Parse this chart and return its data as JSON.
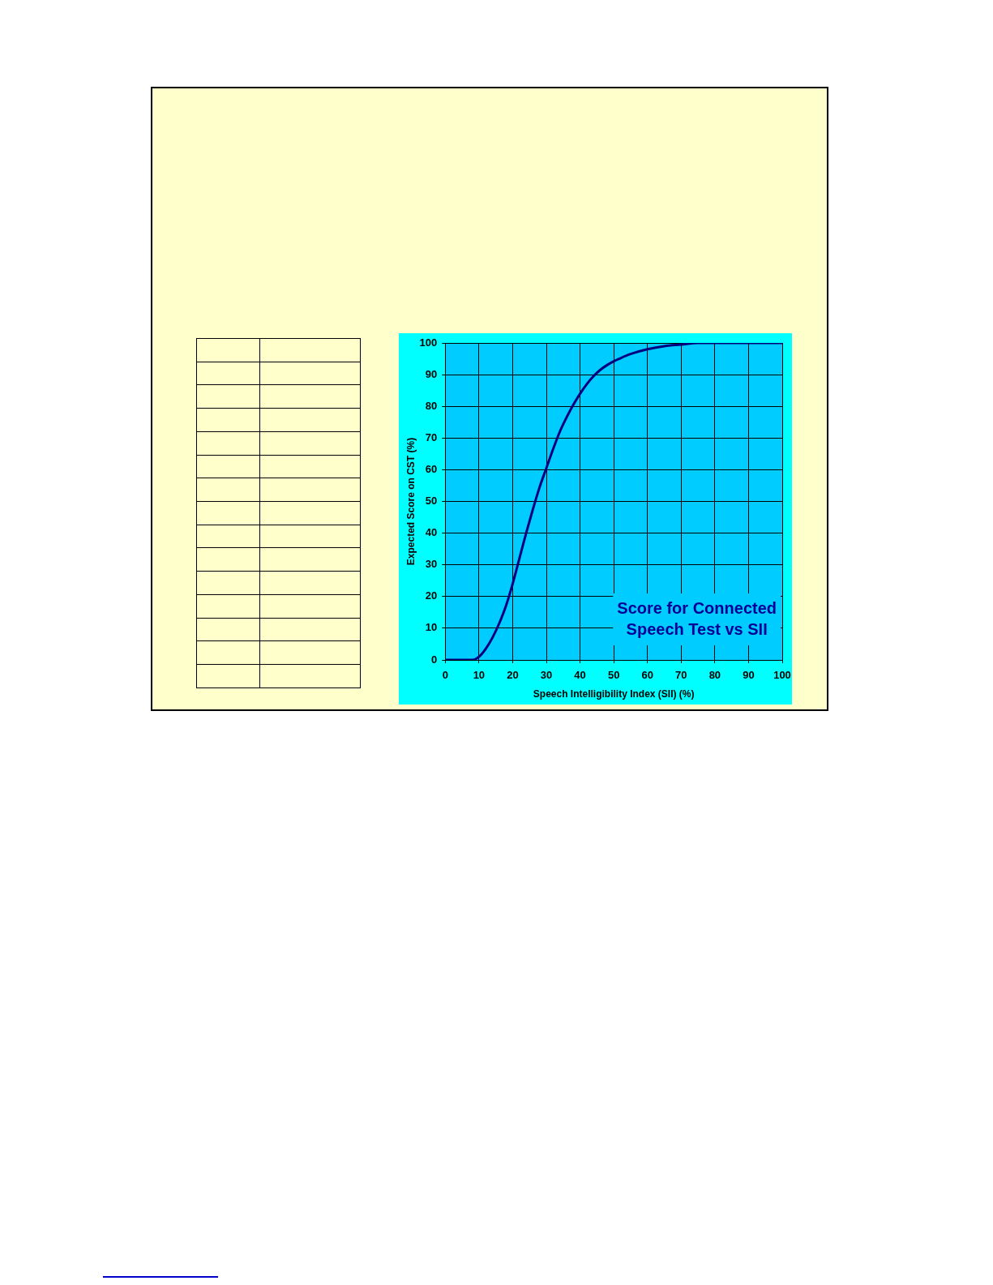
{
  "chart_data": {
    "type": "line",
    "title": "Score for Connected Speech Test vs SII",
    "xlabel": "Speech Intelligibility Index (SII) (%)",
    "ylabel": "Expected Score on CST (%)",
    "x": [
      0,
      5,
      8,
      10,
      12,
      14,
      16,
      18,
      20,
      22,
      24,
      26,
      28,
      30,
      32,
      34,
      36,
      38,
      40,
      42,
      44,
      46,
      48,
      50,
      52,
      55,
      60,
      65,
      70,
      75,
      80,
      90,
      100
    ],
    "series": [
      {
        "color": "#000080",
        "values": [
          0,
          0,
          0,
          1,
          3.5,
          7,
          11.5,
          17,
          24,
          32,
          40,
          47.5,
          54.5,
          60.5,
          66.5,
          72,
          76.5,
          80.5,
          84,
          87,
          89.5,
          91.5,
          93,
          94.2,
          95.2,
          96.5,
          98,
          99,
          99.5,
          100,
          100,
          100,
          100
        ]
      }
    ],
    "xlim": [
      0,
      100
    ],
    "ylim": [
      0,
      100
    ],
    "xticks": [
      0,
      10,
      20,
      30,
      40,
      50,
      60,
      70,
      80,
      90,
      100
    ],
    "yticks": [
      0,
      10,
      20,
      30,
      40,
      50,
      60,
      70,
      80,
      90,
      100
    ],
    "grid": true,
    "legend": false,
    "marker": "none",
    "line_style": "solid"
  }
}
